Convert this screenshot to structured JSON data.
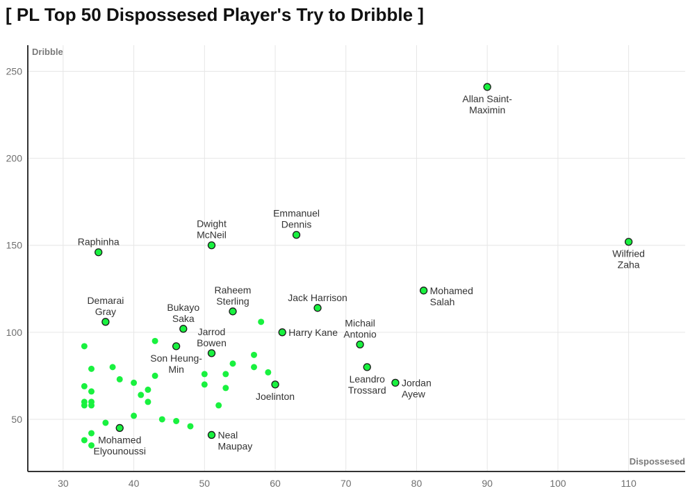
{
  "chart_data": {
    "type": "scatter",
    "title": "[ PL Top 50 Dispossesed Player's Try to Dribble ]",
    "xlabel": "Dispossesed",
    "ylabel": "Dribble",
    "xlim": [
      25,
      118
    ],
    "ylim": [
      20,
      265
    ],
    "xticks": [
      30,
      40,
      50,
      60,
      70,
      80,
      90,
      100,
      110
    ],
    "yticks": [
      50,
      100,
      150,
      200,
      250
    ],
    "grid": true,
    "colors": {
      "point_fill": "#19f13f",
      "point_stroke": "#1a1a1a",
      "grid": "#e6e6e6",
      "axis": "#333333"
    },
    "labeled_points": [
      {
        "name": "Allan Saint-\nMaximin",
        "x": 90,
        "y": 241,
        "label_pos": "below"
      },
      {
        "name": "Wilfried\nZaha",
        "x": 110,
        "y": 152,
        "label_pos": "below"
      },
      {
        "name": "Emmanuel\nDennis",
        "x": 63,
        "y": 156,
        "label_pos": "above"
      },
      {
        "name": "Dwight\nMcNeil",
        "x": 51,
        "y": 150,
        "label_pos": "above"
      },
      {
        "name": "Raphinha",
        "x": 35,
        "y": 146,
        "label_pos": "above"
      },
      {
        "name": "Mohamed\nSalah",
        "x": 81,
        "y": 124,
        "label_pos": "right"
      },
      {
        "name": "Jack Harrison",
        "x": 66,
        "y": 114,
        "label_pos": "above"
      },
      {
        "name": "Raheem\nSterling",
        "x": 54,
        "y": 112,
        "label_pos": "above"
      },
      {
        "name": "Demarai\nGray",
        "x": 36,
        "y": 106,
        "label_pos": "above"
      },
      {
        "name": "Bukayo\nSaka",
        "x": 47,
        "y": 102,
        "label_pos": "above"
      },
      {
        "name": "Harry Kane",
        "x": 61,
        "y": 100,
        "label_pos": "right"
      },
      {
        "name": "Michail\nAntonio",
        "x": 72,
        "y": 93,
        "label_pos": "above"
      },
      {
        "name": "Son Heung-\nMin",
        "x": 46,
        "y": 92,
        "label_pos": "below"
      },
      {
        "name": "Jarrod\nBowen",
        "x": 51,
        "y": 88,
        "label_pos": "above"
      },
      {
        "name": "Leandro\nTrossard",
        "x": 73,
        "y": 80,
        "label_pos": "below"
      },
      {
        "name": "Jordan\nAyew",
        "x": 77,
        "y": 71,
        "label_pos": "right"
      },
      {
        "name": "Joelinton",
        "x": 60,
        "y": 70,
        "label_pos": "below"
      },
      {
        "name": "Mohamed\nElyounoussi",
        "x": 38,
        "y": 45,
        "label_pos": "below"
      },
      {
        "name": "Neal\nMaupay",
        "x": 51,
        "y": 41,
        "label_pos": "right"
      }
    ],
    "unlabeled_points": [
      {
        "x": 33,
        "y": 92
      },
      {
        "x": 34,
        "y": 79
      },
      {
        "x": 33,
        "y": 69
      },
      {
        "x": 34,
        "y": 66
      },
      {
        "x": 33,
        "y": 60
      },
      {
        "x": 34,
        "y": 60
      },
      {
        "x": 33,
        "y": 58
      },
      {
        "x": 34,
        "y": 58
      },
      {
        "x": 36,
        "y": 48
      },
      {
        "x": 34,
        "y": 42
      },
      {
        "x": 33,
        "y": 38
      },
      {
        "x": 34,
        "y": 35
      },
      {
        "x": 37,
        "y": 80
      },
      {
        "x": 38,
        "y": 73
      },
      {
        "x": 40,
        "y": 71
      },
      {
        "x": 41,
        "y": 64
      },
      {
        "x": 42,
        "y": 67
      },
      {
        "x": 42,
        "y": 60
      },
      {
        "x": 43,
        "y": 75
      },
      {
        "x": 43,
        "y": 95
      },
      {
        "x": 40,
        "y": 52
      },
      {
        "x": 44,
        "y": 50
      },
      {
        "x": 46,
        "y": 49
      },
      {
        "x": 48,
        "y": 46
      },
      {
        "x": 50,
        "y": 76
      },
      {
        "x": 50,
        "y": 70
      },
      {
        "x": 52,
        "y": 58
      },
      {
        "x": 53,
        "y": 76
      },
      {
        "x": 53,
        "y": 68
      },
      {
        "x": 54,
        "y": 82
      },
      {
        "x": 57,
        "y": 87
      },
      {
        "x": 57,
        "y": 80
      },
      {
        "x": 58,
        "y": 106
      },
      {
        "x": 59,
        "y": 77
      }
    ]
  }
}
